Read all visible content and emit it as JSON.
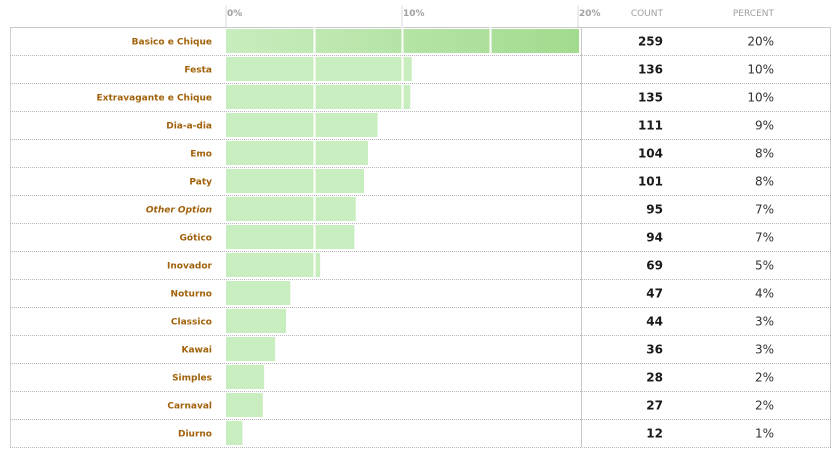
{
  "chart_data": {
    "type": "bar",
    "orientation": "horizontal",
    "x_ticks": [
      "0%",
      "10%",
      "20%"
    ],
    "xlim": [
      0,
      20
    ],
    "columns": {
      "count": "COUNT",
      "percent": "PERCENT"
    },
    "highlight_color": "#a2db8e",
    "bar_color": "#c8edbe",
    "label_color": "#a2620b",
    "rows": [
      {
        "label": "Basico e Chique",
        "count": "259",
        "percent": "20%",
        "value": 20.1
      },
      {
        "label": "Festa",
        "count": "136",
        "percent": "10%",
        "value": 10.55
      },
      {
        "label": "Extravagante e Chique",
        "count": "135",
        "percent": "10%",
        "value": 10.47
      },
      {
        "label": "Dia-a-dia",
        "count": "111",
        "percent": "9%",
        "value": 8.61
      },
      {
        "label": "Emo",
        "count": "104",
        "percent": "8%",
        "value": 8.07
      },
      {
        "label": "Paty",
        "count": "101",
        "percent": "8%",
        "value": 7.84
      },
      {
        "label": "Other Option",
        "count": "95",
        "percent": "7%",
        "value": 7.37,
        "italic": true
      },
      {
        "label": "Gótico",
        "count": "94",
        "percent": "7%",
        "value": 7.29
      },
      {
        "label": "Inovador",
        "count": "69",
        "percent": "5%",
        "value": 5.35
      },
      {
        "label": "Noturno",
        "count": "47",
        "percent": "4%",
        "value": 3.65
      },
      {
        "label": "Classico",
        "count": "44",
        "percent": "3%",
        "value": 3.41
      },
      {
        "label": "Kawai",
        "count": "36",
        "percent": "3%",
        "value": 2.79
      },
      {
        "label": "Simples",
        "count": "28",
        "percent": "2%",
        "value": 2.17
      },
      {
        "label": "Carnaval",
        "count": "27",
        "percent": "2%",
        "value": 2.09
      },
      {
        "label": "Diurno",
        "count": "12",
        "percent": "1%",
        "value": 0.93
      }
    ]
  }
}
